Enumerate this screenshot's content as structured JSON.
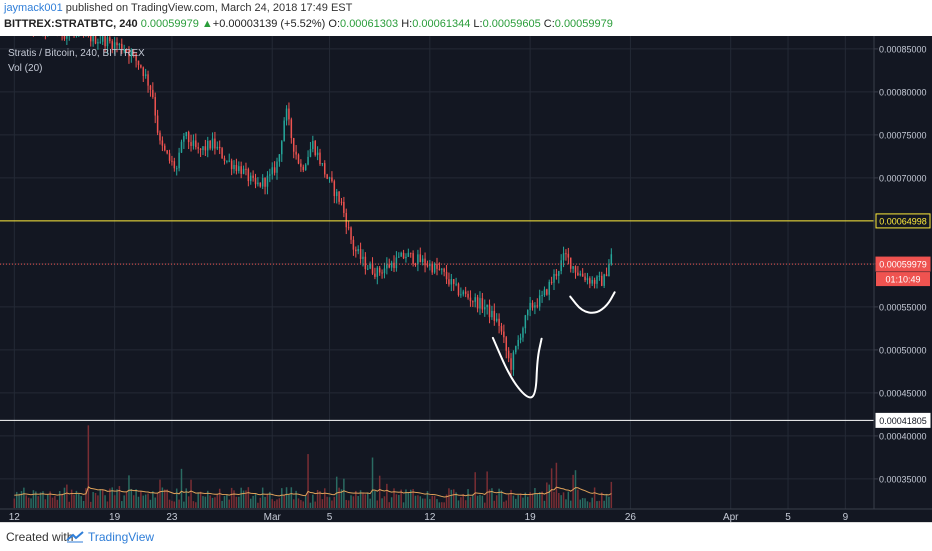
{
  "header": {
    "user": "jaymack001",
    "published": " published on TradingView.com, March 24, 2018 17:49 EST",
    "symbol": "BITTREX:STRATBTC, 240",
    "last": "0.00059979",
    "change_arrow": "▲",
    "change": "+0.00003139 (+5.52%)",
    "o_label": "O:",
    "o_value": "0.00061303",
    "h_label": "H:",
    "h_value": "0.00061344",
    "l_label": "L:",
    "l_value": "0.00059605",
    "c_label": "C:",
    "c_value": "0.00059979"
  },
  "legend": {
    "main": "Stratis / Bitcoin, 240, BITTREX",
    "vol": "Vol (20)"
  },
  "footer": {
    "created": "Created with",
    "brand": "TradingView"
  },
  "colors": {
    "background": "#131722",
    "grid": "#242a36",
    "up": "#26a69a",
    "down": "#ef5350",
    "vol_up": "#2a6b62",
    "vol_down": "#7a2e34",
    "vol_ma": "#e0a25a",
    "yellow_line": "#ffeb3b",
    "white_line": "#ffffff",
    "price_line": "#ef5350",
    "axis_text": "#c5cad6"
  },
  "chart_data": {
    "type": "candlestick",
    "title": "Stratis / Bitcoin, 240, BITTREX",
    "y_ticks": [
      0.00085,
      0.0008,
      0.00075,
      0.0007,
      0.00065,
      0.0006,
      0.00055,
      0.0005,
      0.00045,
      0.0004,
      0.00035
    ],
    "y_tick_labels": [
      "0.00085000",
      "0.00080000",
      "0.00075000",
      "0.00070000",
      "0.00065000",
      "0.00060000",
      "0.00055000",
      "0.00050000",
      "0.00045000",
      "0.00040000",
      "0.00035000"
    ],
    "ylim": [
      0.000315,
      0.000865
    ],
    "x_ticks": [
      {
        "day": 0,
        "label": "12"
      },
      {
        "day": 7,
        "label": "19"
      },
      {
        "day": 11,
        "label": "23"
      },
      {
        "day": 18,
        "label": "Mar"
      },
      {
        "day": 22,
        "label": "5"
      },
      {
        "day": 29,
        "label": "12"
      },
      {
        "day": 36,
        "label": "19"
      },
      {
        "day": 43,
        "label": "26"
      },
      {
        "day": 50,
        "label": "Apr"
      },
      {
        "day": 54,
        "label": "5"
      },
      {
        "day": 58,
        "label": "9"
      }
    ],
    "xlim": [
      -1.0,
      60.0
    ],
    "horizontal_lines": [
      {
        "value": 0.00064998,
        "label": "0.00064998",
        "style": "solid",
        "color": "#ffeb3b"
      },
      {
        "value": 0.00041805,
        "label": "0.00041805",
        "style": "solid",
        "color": "#ffffff"
      },
      {
        "value": 0.00059979,
        "label": "0.00059979",
        "style": "dotted",
        "color": "#ef5350"
      }
    ],
    "countdown": "01:10:49",
    "price_path": [
      [
        0.0,
        0.00088
      ],
      [
        6.5,
        0.00086
      ],
      [
        8.0,
        0.00085
      ],
      [
        9.0,
        0.00083
      ],
      [
        9.8,
        0.0008
      ],
      [
        10.3,
        0.00074
      ],
      [
        11.0,
        0.00072
      ],
      [
        11.5,
        0.00071
      ],
      [
        12.0,
        0.00075
      ],
      [
        13.0,
        0.00073
      ],
      [
        14.0,
        0.00074
      ],
      [
        15.0,
        0.00072
      ],
      [
        16.0,
        0.00071
      ],
      [
        17.0,
        0.00069
      ],
      [
        18.0,
        0.0007
      ],
      [
        18.6,
        0.00072
      ],
      [
        19.1,
        0.00078
      ],
      [
        19.6,
        0.00074
      ],
      [
        20.2,
        0.00071
      ],
      [
        21.0,
        0.00074
      ],
      [
        22.0,
        0.0007
      ],
      [
        23.0,
        0.00067
      ],
      [
        23.8,
        0.00062
      ],
      [
        24.6,
        0.0006
      ],
      [
        25.5,
        0.00059
      ],
      [
        26.5,
        0.0006
      ],
      [
        27.5,
        0.00061
      ],
      [
        29.0,
        0.0006
      ],
      [
        30.0,
        0.00059
      ],
      [
        31.0,
        0.00057
      ],
      [
        32.0,
        0.00056
      ],
      [
        33.0,
        0.00055
      ],
      [
        34.0,
        0.00053
      ],
      [
        34.8,
        0.00048
      ],
      [
        35.5,
        0.00052
      ],
      [
        36.2,
        0.00055
      ],
      [
        37.0,
        0.00056
      ],
      [
        38.0,
        0.00059
      ],
      [
        38.6,
        0.00061
      ],
      [
        39.5,
        0.00059
      ],
      [
        40.5,
        0.00058
      ],
      [
        41.3,
        0.00058
      ],
      [
        41.8,
        0.00061
      ]
    ],
    "candle_start_day": 0.0,
    "candle_end_day": 41.8,
    "candles_per_day": 6,
    "volume": {
      "label": "Vol (20)",
      "spikes": [
        [
          5.2,
          0.95
        ],
        [
          11.6,
          0.45
        ],
        [
          20.5,
          0.62
        ],
        [
          22.5,
          0.36
        ],
        [
          25.0,
          0.58
        ],
        [
          33.0,
          0.42
        ],
        [
          37.8,
          0.52
        ],
        [
          41.7,
          0.3
        ]
      ]
    },
    "annotations": [
      {
        "type": "freehand-v",
        "points": [
          [
            33.4,
            0.000514
          ],
          [
            34.6,
            0.000468
          ],
          [
            35.8,
            0.000443
          ],
          [
            36.4,
            0.000447
          ],
          [
            36.5,
            0.00049
          ],
          [
            36.8,
            0.000513
          ]
        ]
      },
      {
        "type": "freehand-cup",
        "points": [
          [
            38.8,
            0.000562
          ],
          [
            39.6,
            0.000545
          ],
          [
            40.6,
            0.000542
          ],
          [
            41.4,
            0.000552
          ],
          [
            41.9,
            0.000567
          ]
        ]
      }
    ]
  }
}
